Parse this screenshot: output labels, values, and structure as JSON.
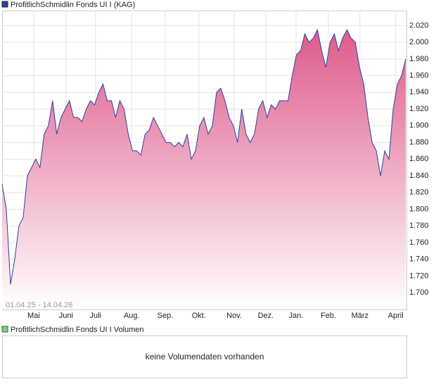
{
  "chart_data": {
    "type": "area",
    "legend": "ProfitlichSchmidlin Fonds UI I (KAG)",
    "annotation": "01.04.25 - 14.04.26",
    "color": "#2b3f9f",
    "fill_colors": [
      "#de5a8c",
      "#ffffff"
    ],
    "values": [
      1.83,
      1.8,
      1.71,
      1.74,
      1.78,
      1.79,
      1.84,
      1.85,
      1.86,
      1.85,
      1.89,
      1.9,
      1.93,
      1.89,
      1.91,
      1.92,
      1.93,
      1.91,
      1.91,
      1.905,
      1.92,
      1.93,
      1.925,
      1.94,
      1.95,
      1.93,
      1.93,
      1.91,
      1.93,
      1.92,
      1.89,
      1.87,
      1.87,
      1.865,
      1.89,
      1.895,
      1.91,
      1.9,
      1.89,
      1.88,
      1.88,
      1.875,
      1.88,
      1.875,
      1.89,
      1.86,
      1.87,
      1.9,
      1.91,
      1.89,
      1.9,
      1.94,
      1.945,
      1.93,
      1.91,
      1.9,
      1.88,
      1.92,
      1.89,
      1.88,
      1.89,
      1.92,
      1.93,
      1.91,
      1.925,
      1.92,
      1.93,
      1.93,
      1.93,
      1.96,
      1.985,
      1.99,
      2.01,
      2.0,
      2.005,
      2.015,
      1.99,
      1.97,
      2.0,
      2.01,
      1.99,
      2.005,
      2.015,
      2.005,
      2.0,
      1.97,
      1.95,
      1.91,
      1.88,
      1.87,
      1.84,
      1.87,
      1.86,
      1.92,
      1.95,
      1.96,
      1.98
    ],
    "xticks": [
      {
        "value": 7.5,
        "label": "Mai"
      },
      {
        "value": 15.2,
        "label": "Juni"
      },
      {
        "value": 22.2,
        "label": "Juli"
      },
      {
        "value": 30.8,
        "label": "Aug."
      },
      {
        "value": 38.8,
        "label": "Sep."
      },
      {
        "value": 46.8,
        "label": "Okt."
      },
      {
        "value": 55.2,
        "label": "Nov."
      },
      {
        "value": 62.7,
        "label": "Dez."
      },
      {
        "value": 69.9,
        "label": "Jan."
      },
      {
        "value": 77.6,
        "label": "Feb."
      },
      {
        "value": 85.1,
        "label": "März"
      },
      {
        "value": 93.6,
        "label": "April"
      }
    ],
    "ylim": [
      1.68,
      2.038
    ],
    "yticks": [
      {
        "value": 1.7,
        "label": "1.700"
      },
      {
        "value": 1.72,
        "label": "1.720"
      },
      {
        "value": 1.74,
        "label": "1.740"
      },
      {
        "value": 1.76,
        "label": "1.760"
      },
      {
        "value": 1.78,
        "label": "1.780"
      },
      {
        "value": 1.8,
        "label": "1.800"
      },
      {
        "value": 1.82,
        "label": "1.820"
      },
      {
        "value": 1.84,
        "label": "1.840"
      },
      {
        "value": 1.86,
        "label": "1.860"
      },
      {
        "value": 1.88,
        "label": "1.880"
      },
      {
        "value": 1.9,
        "label": "1.900"
      },
      {
        "value": 1.92,
        "label": "1.920"
      },
      {
        "value": 1.94,
        "label": "1.940"
      },
      {
        "value": 1.96,
        "label": "1.960"
      },
      {
        "value": 1.98,
        "label": "1.980"
      },
      {
        "value": 2.0,
        "label": "2.000"
      },
      {
        "value": 2.02,
        "label": "2.020"
      }
    ],
    "grid": true
  },
  "volume_panel": {
    "legend": "ProfitlichSchmidlin Fonds UI I Volumen",
    "message": "keine Volumendaten vorhanden"
  }
}
